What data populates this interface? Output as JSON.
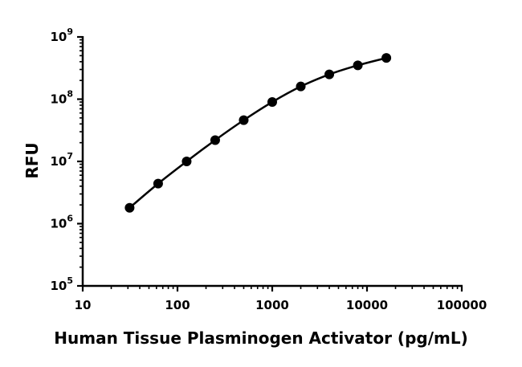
{
  "chart_data": {
    "type": "scatter",
    "title": "",
    "xlabel": "Human Tissue Plasminogen Activator (pg/mL)",
    "ylabel": "RFU",
    "xscale": "log",
    "yscale": "log",
    "xlim": [
      10,
      100000
    ],
    "ylim": [
      100000,
      1000000000
    ],
    "x_tick_labels": [
      "10",
      "100",
      "1000",
      "10000",
      "100000"
    ],
    "y_tick_labels": [
      {
        "base": "10",
        "exp": "5"
      },
      {
        "base": "10",
        "exp": "6"
      },
      {
        "base": "10",
        "exp": "7"
      },
      {
        "base": "10",
        "exp": "8"
      },
      {
        "base": "10",
        "exp": "9"
      }
    ],
    "grid": false,
    "legend": "none",
    "series": [
      {
        "x": [
          31.25,
          62.5,
          125,
          250,
          500,
          1000,
          2000,
          4000,
          8000,
          16000
        ],
        "y": [
          1800000,
          4400000,
          10000000,
          22000000,
          46000000,
          90000000,
          160000000,
          250000000,
          350000000,
          460000000
        ],
        "fit_line": true,
        "marker": "circle",
        "color": "#000000"
      }
    ]
  }
}
